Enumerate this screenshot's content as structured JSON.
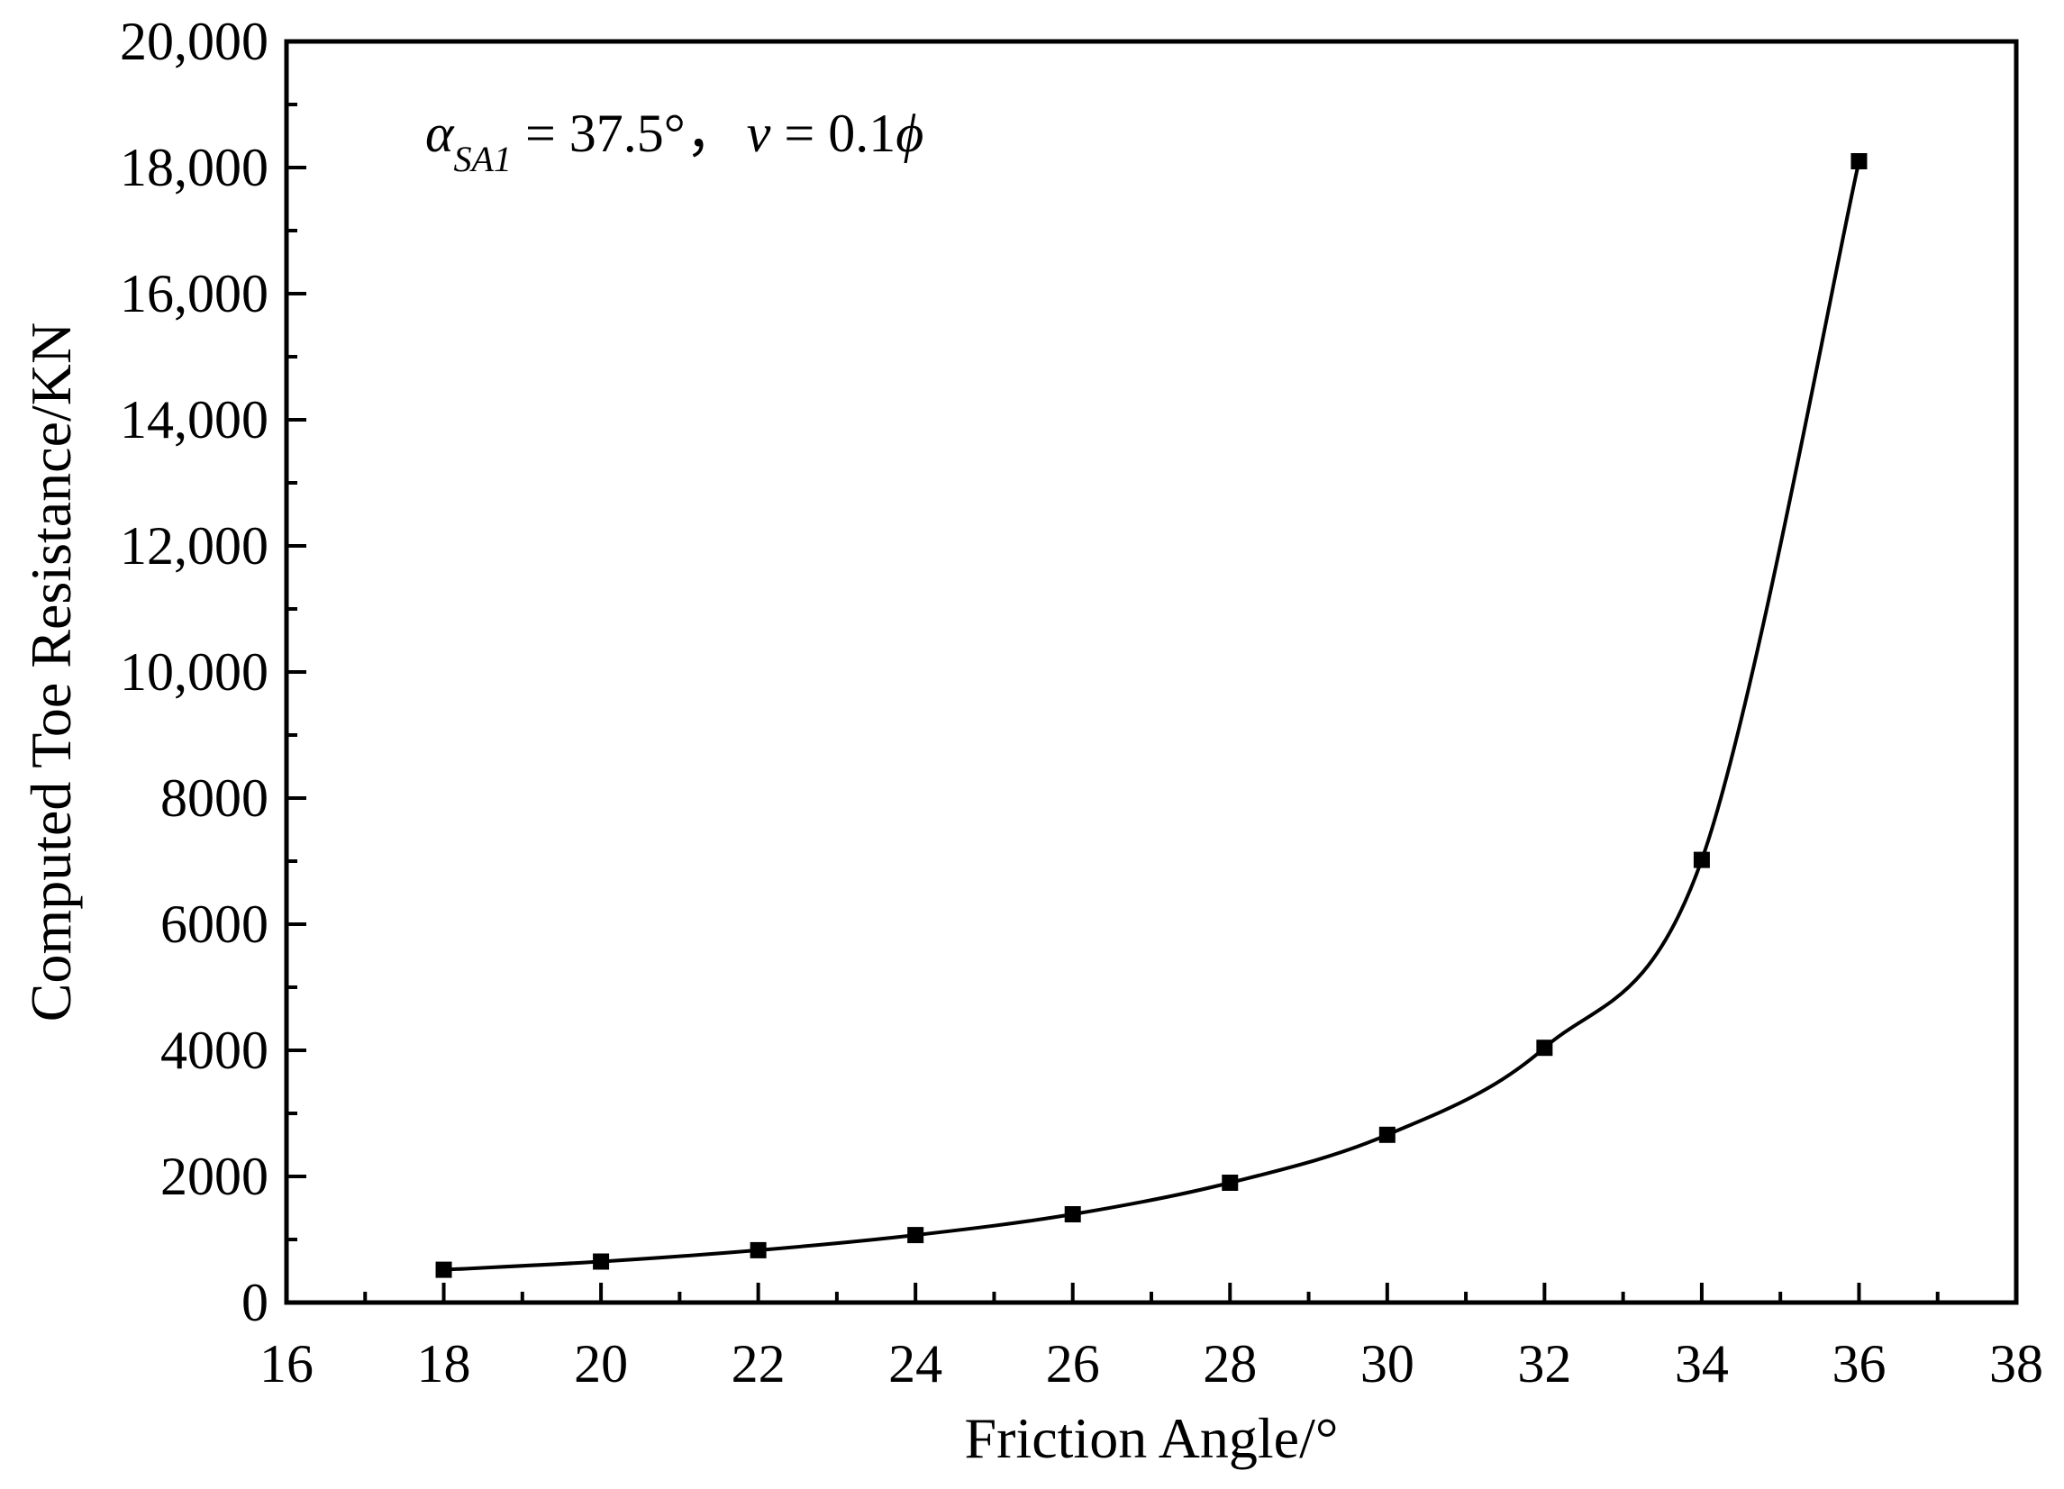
{
  "chart_data": {
    "type": "line",
    "title": "",
    "xlabel": "Friction Angle/°",
    "ylabel": "Computed Toe Resistance/KN",
    "xlim": [
      16,
      38
    ],
    "ylim": [
      0,
      20000
    ],
    "x_ticks": [
      16,
      18,
      20,
      22,
      24,
      26,
      28,
      30,
      32,
      34,
      36,
      38
    ],
    "x_tick_labels": [
      "16",
      "18",
      "20",
      "22",
      "24",
      "26",
      "28",
      "30",
      "32",
      "34",
      "36",
      "38"
    ],
    "y_ticks": [
      0,
      2000,
      4000,
      6000,
      8000,
      10000,
      12000,
      14000,
      16000,
      18000,
      20000
    ],
    "y_tick_labels": [
      "0",
      "2000",
      "4000",
      "6000",
      "8000",
      "10,000",
      "12,000",
      "14,000",
      "16,000",
      "18,000",
      "20,000"
    ],
    "grid": false,
    "legend": "none",
    "marker": "square",
    "line_style": "smooth",
    "color": "#000000",
    "annotation": {
      "alpha_symbol": "α",
      "alpha_subscript": "SA1",
      "alpha_value": " = 37.5°，",
      "v_symbol": "v",
      "v_value": " = 0.1",
      "phi_symbol": "ϕ"
    },
    "series": [
      {
        "x": [
          18,
          20,
          22,
          24,
          26,
          28,
          30,
          32,
          34,
          36
        ],
        "y": [
          520,
          650,
          830,
          1070,
          1400,
          1900,
          2660,
          4040,
          7020,
          18100
        ]
      }
    ]
  }
}
